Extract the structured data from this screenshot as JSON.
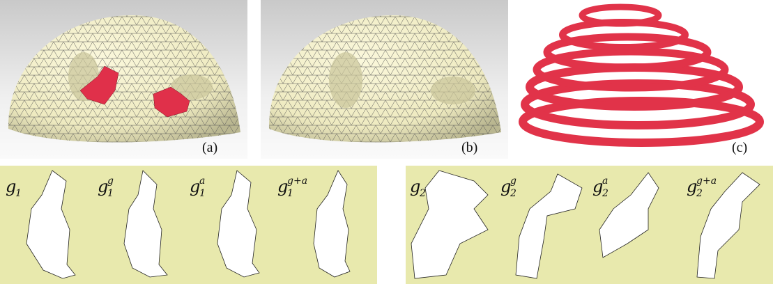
{
  "panels": [
    {
      "label": "(a)"
    },
    {
      "label": "(b)"
    },
    {
      "label": "(c)"
    }
  ],
  "strips": [
    {
      "items": [
        {
          "base": "g",
          "sub": "1"
        },
        {
          "base": "g",
          "sub": "1",
          "sup": "g"
        },
        {
          "base": "g",
          "sub": "1",
          "sup": "a"
        },
        {
          "base": "g",
          "sub": "1",
          "sup": "g+a"
        }
      ]
    },
    {
      "items": [
        {
          "base": "g",
          "sub": "2"
        },
        {
          "base": "g",
          "sub": "2",
          "sup": "g"
        },
        {
          "base": "g",
          "sub": "2",
          "sup": "a"
        },
        {
          "base": "g",
          "sub": "2",
          "sup": "g+a"
        }
      ]
    }
  ]
}
